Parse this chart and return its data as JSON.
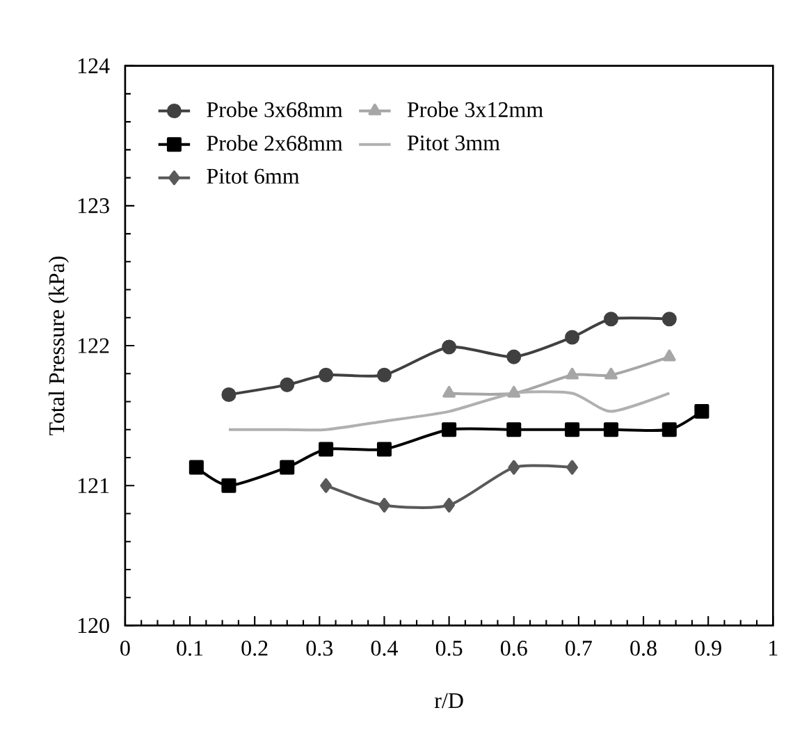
{
  "chart_data": {
    "type": "line",
    "xlabel": "r/D",
    "ylabel": "Total Pressure (kPa)",
    "xlim": [
      0,
      1
    ],
    "ylim": [
      120,
      124
    ],
    "xticks": [
      0,
      0.1,
      0.2,
      0.3,
      0.4,
      0.5,
      0.6,
      0.7,
      0.8,
      0.9,
      1
    ],
    "yticks": [
      120,
      121,
      122,
      123,
      124
    ],
    "grid": false,
    "legend": "top left",
    "series": [
      {
        "name": "Probe 3x68mm",
        "color": "#404040",
        "marker": "circle",
        "x": [
          0.16,
          0.25,
          0.31,
          0.4,
          0.5,
          0.6,
          0.69,
          0.75,
          0.84
        ],
        "values": [
          121.65,
          121.72,
          121.79,
          121.79,
          121.99,
          121.92,
          122.06,
          122.19,
          122.19
        ]
      },
      {
        "name": "Probe 3x12mm",
        "color": "#a6a6a6",
        "marker": "triangle",
        "x": [
          0.5,
          0.6,
          0.69,
          0.75,
          0.84
        ],
        "values": [
          121.66,
          121.66,
          121.79,
          121.79,
          121.92
        ]
      },
      {
        "name": "Probe 2x68mm",
        "color": "#000000",
        "marker": "square",
        "x": [
          0.11,
          0.16,
          0.25,
          0.31,
          0.4,
          0.5,
          0.6,
          0.69,
          0.75,
          0.84,
          0.89
        ],
        "values": [
          121.13,
          121.0,
          121.13,
          121.26,
          121.26,
          121.4,
          121.4,
          121.4,
          121.4,
          121.4,
          121.53
        ]
      },
      {
        "name": "Pitot 3mm",
        "color": "#b0b0b0",
        "marker": "none",
        "x": [
          0.16,
          0.25,
          0.31,
          0.4,
          0.5,
          0.6,
          0.69,
          0.75,
          0.84
        ],
        "values": [
          121.4,
          121.4,
          121.4,
          121.46,
          121.53,
          121.66,
          121.66,
          121.53,
          121.66
        ]
      },
      {
        "name": "Pitot 6mm",
        "color": "#595959",
        "marker": "diamond",
        "x": [
          0.31,
          0.4,
          0.5,
          0.6,
          0.69
        ],
        "values": [
          121.0,
          120.86,
          120.86,
          121.13,
          121.13
        ]
      }
    ]
  }
}
